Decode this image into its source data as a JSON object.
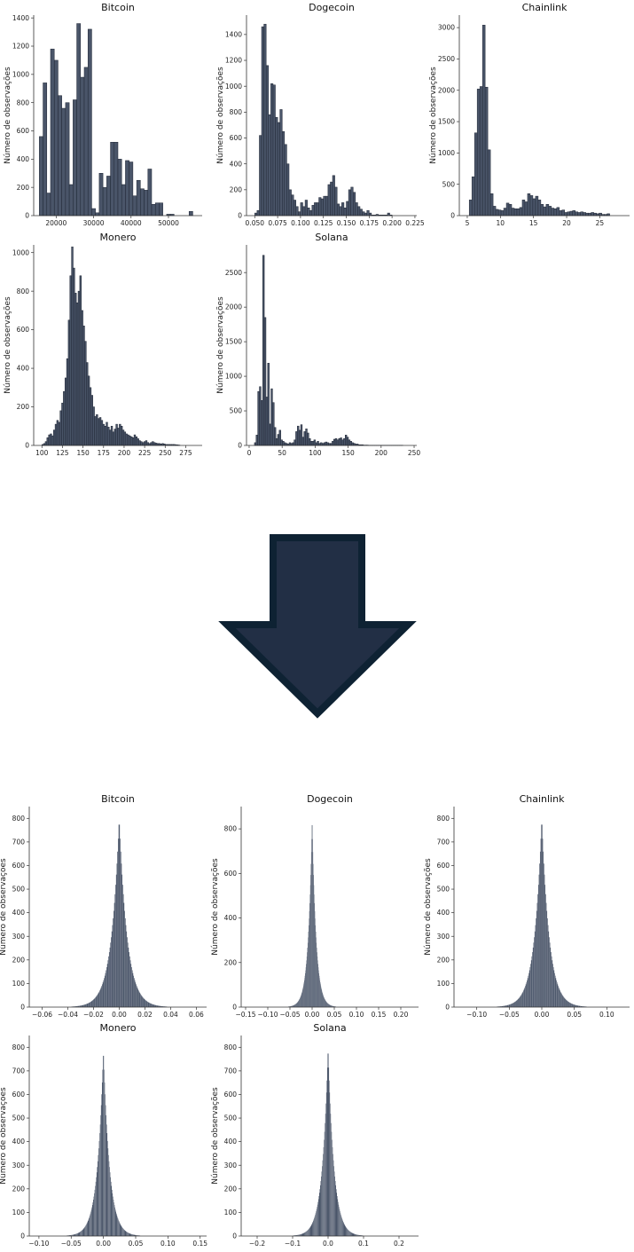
{
  "colors": {
    "bar_fill": "#4a5569",
    "bar_edge": "#1f2634",
    "axis": "#333333",
    "arrow_fill": "#222f45",
    "arrow_edge": "#0e2233"
  },
  "arrow": {
    "icon": "down-arrow-icon",
    "direction": "down"
  },
  "chart_data": [
    {
      "type": "bar",
      "group": "levels",
      "title": "Bitcoin",
      "ylabel": "Número de observações",
      "xlim": [
        14000,
        59000
      ],
      "ylim": [
        0,
        1420
      ],
      "xticks": [
        20000,
        30000,
        40000,
        50000
      ],
      "xtick_labels": [
        "20000",
        "30000",
        "40000",
        "50000"
      ],
      "yticks": [
        0,
        200,
        400,
        600,
        800,
        1000,
        1200,
        1400
      ],
      "ytick_labels": [
        "0",
        "200",
        "400",
        "600",
        "800",
        "1000",
        "1200",
        "1400"
      ],
      "bin_start": 15500,
      "bin_width": 1000,
      "values": [
        560,
        940,
        160,
        1180,
        1100,
        850,
        760,
        800,
        220,
        820,
        1360,
        980,
        1050,
        1320,
        50,
        20,
        300,
        200,
        280,
        520,
        520,
        400,
        220,
        390,
        380,
        140,
        250,
        190,
        180,
        330,
        80,
        90,
        90,
        0,
        10,
        10,
        0,
        0,
        0,
        0,
        30
      ]
    },
    {
      "type": "bar",
      "group": "levels",
      "title": "Dogecoin",
      "ylabel": "Número de observações",
      "xlim": [
        0.041,
        0.227
      ],
      "ylim": [
        0,
        1550
      ],
      "xticks": [
        0.05,
        0.075,
        0.1,
        0.125,
        0.15,
        0.175,
        0.2,
        0.225
      ],
      "xtick_labels": [
        "0.050",
        "0.075",
        "0.100",
        "0.125",
        "0.150",
        "0.175",
        "0.200",
        "0.225"
      ],
      "yticks": [
        0,
        200,
        400,
        600,
        800,
        1000,
        1200,
        1400
      ],
      "ytick_labels": [
        "0",
        "200",
        "400",
        "600",
        "800",
        "1000",
        "1200",
        "1400"
      ],
      "bin_start": 0.05,
      "bin_width": 0.0025,
      "values": [
        20,
        40,
        620,
        1460,
        1480,
        1160,
        780,
        1020,
        1010,
        760,
        720,
        820,
        650,
        550,
        400,
        200,
        160,
        120,
        70,
        30,
        100,
        70,
        120,
        60,
        40,
        80,
        100,
        100,
        140,
        130,
        150,
        150,
        240,
        260,
        310,
        220,
        90,
        70,
        100,
        60,
        110,
        200,
        220,
        180,
        100,
        70,
        50,
        30,
        20,
        40,
        20,
        5,
        5,
        10,
        5,
        5,
        5,
        5,
        20,
        5
      ]
    },
    {
      "type": "bar",
      "group": "levels",
      "title": "Chainlink",
      "ylabel": "Número de observações",
      "xlim": [
        3.8,
        29.5
      ],
      "ylim": [
        0,
        3200
      ],
      "xticks": [
        5,
        10,
        15,
        20,
        25
      ],
      "xtick_labels": [
        "5",
        "10",
        "15",
        "20",
        "25"
      ],
      "yticks": [
        0,
        500,
        1000,
        1500,
        2000,
        2500,
        3000
      ],
      "ytick_labels": [
        "0",
        "500",
        "1000",
        "1500",
        "2000",
        "2500",
        "3000"
      ],
      "bin_start": 5.3,
      "bin_width": 0.4,
      "values": [
        250,
        620,
        1320,
        2020,
        2060,
        3040,
        2050,
        1050,
        350,
        150,
        100,
        90,
        80,
        120,
        200,
        180,
        120,
        110,
        110,
        130,
        250,
        220,
        350,
        320,
        270,
        310,
        250,
        180,
        140,
        180,
        150,
        120,
        110,
        130,
        80,
        90,
        50,
        60,
        70,
        80,
        60,
        50,
        60,
        50,
        40,
        40,
        50,
        40,
        30,
        40,
        20,
        20,
        30
      ]
    },
    {
      "type": "bar",
      "group": "levels",
      "title": "Monero",
      "ylabel": "Número de observações",
      "xlim": [
        90,
        295
      ],
      "ylim": [
        0,
        1040
      ],
      "xticks": [
        100,
        125,
        150,
        175,
        200,
        225,
        250,
        275
      ],
      "xtick_labels": [
        "100",
        "125",
        "150",
        "175",
        "200",
        "225",
        "250",
        "275"
      ],
      "yticks": [
        0,
        200,
        400,
        600,
        800,
        1000
      ],
      "ytick_labels": [
        "0",
        "200",
        "400",
        "600",
        "800",
        "1000"
      ],
      "bin_start": 100,
      "bin_width": 2,
      "values": [
        5,
        10,
        20,
        40,
        55,
        60,
        50,
        80,
        110,
        130,
        120,
        180,
        220,
        280,
        350,
        450,
        650,
        880,
        1030,
        920,
        790,
        740,
        800,
        880,
        700,
        620,
        540,
        430,
        360,
        300,
        260,
        200,
        150,
        160,
        140,
        145,
        130,
        110,
        100,
        120,
        95,
        80,
        100,
        70,
        85,
        110,
        90,
        110,
        100,
        80,
        70,
        60,
        55,
        50,
        45,
        40,
        55,
        45,
        35,
        25,
        20,
        15,
        20,
        25,
        15,
        10,
        15,
        20,
        15,
        12,
        10,
        10,
        8,
        10,
        8,
        5,
        5,
        5,
        5,
        5,
        5,
        4,
        3,
        2
      ]
    },
    {
      "type": "bar",
      "group": "levels",
      "title": "Solana",
      "ylabel": "Número de observações",
      "xlim": [
        -4,
        254
      ],
      "ylim": [
        0,
        2900
      ],
      "xticks": [
        0,
        50,
        100,
        150,
        200,
        250
      ],
      "xtick_labels": [
        "0",
        "50",
        "100",
        "150",
        "200",
        "250"
      ],
      "yticks": [
        0,
        500,
        1000,
        1500,
        2000,
        2500
      ],
      "ytick_labels": [
        "0",
        "500",
        "1000",
        "1500",
        "2000",
        "2500"
      ],
      "bin_start": 8,
      "bin_width": 2.5,
      "values": [
        40,
        150,
        780,
        850,
        650,
        2750,
        1850,
        700,
        1190,
        310,
        820,
        620,
        260,
        100,
        160,
        220,
        80,
        60,
        40,
        30,
        20,
        40,
        30,
        40,
        80,
        200,
        280,
        220,
        300,
        120,
        200,
        240,
        180,
        100,
        60,
        60,
        80,
        40,
        60,
        30,
        40,
        30,
        40,
        50,
        40,
        30,
        30,
        60,
        90,
        100,
        80,
        100,
        110,
        80,
        100,
        150,
        120,
        80,
        60,
        40,
        30,
        20,
        20,
        10,
        10,
        10,
        5,
        5,
        5,
        3,
        3,
        3,
        3,
        3,
        3,
        3,
        3,
        3,
        3,
        3,
        3,
        3,
        3,
        3,
        3,
        3,
        3,
        3,
        3,
        3
      ]
    },
    {
      "type": "bar",
      "group": "returns",
      "title": "Bitcoin",
      "ylabel": "Número de observações",
      "xlim": [
        -0.07,
        0.068
      ],
      "ylim": [
        0,
        850
      ],
      "xticks": [
        -0.06,
        -0.04,
        -0.02,
        0,
        0.02,
        0.04,
        0.06
      ],
      "xtick_labels": [
        "−0.06",
        "−0.04",
        "−0.02",
        "0.00",
        "0.02",
        "0.04",
        "0.06"
      ],
      "yticks": [
        0,
        100,
        200,
        300,
        400,
        500,
        600,
        700,
        800
      ],
      "ytick_labels": [
        "0",
        "100",
        "200",
        "300",
        "400",
        "500",
        "600",
        "700",
        "800"
      ],
      "distribution": {
        "center": 0.0,
        "peak": 805,
        "scale": 0.0062
      }
    },
    {
      "type": "bar",
      "group": "returns",
      "title": "Dogecoin",
      "ylabel": "Número de observações",
      "xlim": [
        -0.16,
        0.24
      ],
      "ylim": [
        0,
        900
      ],
      "xticks": [
        -0.15,
        -0.1,
        -0.05,
        0,
        0.05,
        0.1,
        0.15,
        0.2
      ],
      "xtick_labels": [
        "−0.15",
        "−0.10",
        "−0.05",
        "0.00",
        "0.05",
        "0.10",
        "0.15",
        "0.20"
      ],
      "yticks": [
        0,
        200,
        400,
        600,
        800
      ],
      "ytick_labels": [
        "0",
        "200",
        "400",
        "600",
        "800"
      ],
      "distribution": {
        "center": 0.0,
        "peak": 850,
        "scale": 0.009
      }
    },
    {
      "type": "bar",
      "group": "returns",
      "title": "Chainlink",
      "ylabel": "Número de observações",
      "xlim": [
        -0.135,
        0.135
      ],
      "ylim": [
        0,
        850
      ],
      "xticks": [
        -0.1,
        -0.05,
        0,
        0.05,
        0.1
      ],
      "xtick_labels": [
        "−0.10",
        "−0.05",
        "0.00",
        "0.05",
        "0.10"
      ],
      "yticks": [
        0,
        100,
        200,
        300,
        400,
        500,
        600,
        700,
        800
      ],
      "ytick_labels": [
        "0",
        "100",
        "200",
        "300",
        "400",
        "500",
        "600",
        "700",
        "800"
      ],
      "distribution": {
        "center": 0.0,
        "peak": 805,
        "scale": 0.0115
      }
    },
    {
      "type": "bar",
      "group": "returns",
      "title": "Monero",
      "ylabel": "Número de observações",
      "xlim": [
        -0.115,
        0.16
      ],
      "ylim": [
        0,
        850
      ],
      "xticks": [
        -0.1,
        -0.05,
        0,
        0.05,
        0.1,
        0.15
      ],
      "xtick_labels": [
        "−0.10",
        "−0.05",
        "0.00",
        "0.05",
        "0.10",
        "0.15"
      ],
      "yticks": [
        0,
        100,
        200,
        300,
        400,
        500,
        600,
        700,
        800
      ],
      "ytick_labels": [
        "0",
        "100",
        "200",
        "300",
        "400",
        "500",
        "600",
        "700",
        "800"
      ],
      "distribution": {
        "center": 0.0,
        "peak": 795,
        "scale": 0.0095
      }
    },
    {
      "type": "bar",
      "group": "returns",
      "title": "Solana",
      "ylabel": "Número de observações",
      "xlim": [
        -0.245,
        0.255
      ],
      "ylim": [
        0,
        850
      ],
      "xticks": [
        -0.2,
        -0.1,
        0,
        0.1,
        0.2
      ],
      "xtick_labels": [
        "−0.2",
        "−0.1",
        "0.0",
        "0.1",
        "0.2"
      ],
      "yticks": [
        0,
        100,
        200,
        300,
        400,
        500,
        600,
        700,
        800
      ],
      "ytick_labels": [
        "0",
        "100",
        "200",
        "300",
        "400",
        "500",
        "600",
        "700",
        "800"
      ],
      "distribution": {
        "center": 0.0,
        "peak": 805,
        "scale": 0.0165
      }
    }
  ]
}
